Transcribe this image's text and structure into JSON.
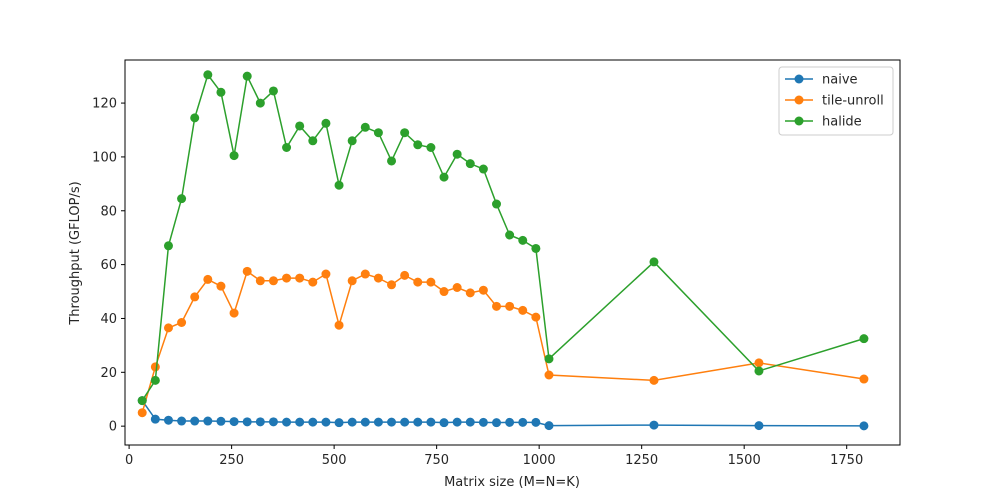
{
  "chart_data": {
    "type": "line",
    "xlabel": "Matrix size (M=N=K)",
    "ylabel": "Throughput (GFLOP/s)",
    "xlim": [
      -10,
      1880
    ],
    "ylim": [
      -7,
      136
    ],
    "xticks": [
      0,
      250,
      500,
      750,
      1000,
      1250,
      1500,
      1750
    ],
    "yticks": [
      0,
      20,
      40,
      60,
      80,
      100,
      120
    ],
    "grid": false,
    "legend_position": "top-right",
    "series": [
      {
        "name": "naive",
        "color": "#1f77b4",
        "x": [
          32,
          64,
          96,
          128,
          160,
          192,
          224,
          256,
          288,
          320,
          352,
          384,
          416,
          448,
          480,
          512,
          544,
          576,
          608,
          640,
          672,
          704,
          736,
          768,
          800,
          832,
          864,
          896,
          928,
          960,
          992,
          1024,
          1280,
          1536,
          1792
        ],
        "y": [
          9.5,
          2.6,
          2.2,
          1.9,
          1.9,
          1.9,
          1.8,
          1.7,
          1.6,
          1.6,
          1.6,
          1.5,
          1.5,
          1.5,
          1.5,
          1.3,
          1.5,
          1.5,
          1.5,
          1.5,
          1.5,
          1.5,
          1.5,
          1.3,
          1.5,
          1.5,
          1.4,
          1.3,
          1.4,
          1.4,
          1.4,
          0.2,
          0.4,
          0.2,
          0.1
        ]
      },
      {
        "name": "tile-unroll",
        "color": "#ff7f0e",
        "x": [
          32,
          64,
          96,
          128,
          160,
          192,
          224,
          256,
          288,
          320,
          352,
          384,
          416,
          448,
          480,
          512,
          544,
          576,
          608,
          640,
          672,
          704,
          736,
          768,
          800,
          832,
          864,
          896,
          928,
          960,
          992,
          1024,
          1280,
          1536,
          1792
        ],
        "y": [
          5,
          22,
          36.5,
          38.5,
          48,
          54.5,
          52,
          42,
          57.5,
          54,
          54,
          55,
          55,
          53.5,
          56.5,
          37.5,
          54,
          56.5,
          55,
          52.5,
          56,
          53.5,
          53.5,
          50,
          51.5,
          49.5,
          50.5,
          44.5,
          44.5,
          43,
          40.5,
          19,
          17,
          23.5,
          17.5
        ]
      },
      {
        "name": "halide",
        "color": "#2ca02c",
        "x": [
          32,
          64,
          96,
          128,
          160,
          192,
          224,
          256,
          288,
          320,
          352,
          384,
          416,
          448,
          480,
          512,
          544,
          576,
          608,
          640,
          672,
          704,
          736,
          768,
          800,
          832,
          864,
          896,
          928,
          960,
          992,
          1024,
          1280,
          1536,
          1792
        ],
        "y": [
          9.5,
          17,
          67,
          84.5,
          114.5,
          130.5,
          124,
          100.5,
          130,
          120,
          124.5,
          103.5,
          111.5,
          106,
          112.5,
          89.5,
          106,
          111,
          109,
          98.5,
          109,
          104.5,
          103.5,
          92.5,
          101,
          97.5,
          95.5,
          82.5,
          71,
          69,
          66,
          25,
          61,
          20.5,
          32.5
        ]
      }
    ]
  }
}
